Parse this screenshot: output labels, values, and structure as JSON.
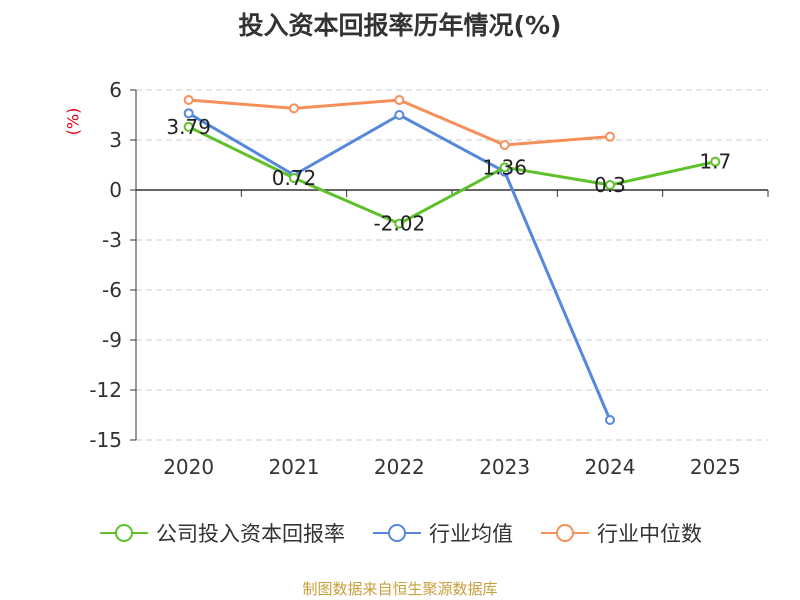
{
  "chart_data": {
    "type": "line",
    "title": "投入资本回报率历年情况(%)",
    "unit_label": "(%)",
    "categories": [
      "2020",
      "2021",
      "2022",
      "2023",
      "2024",
      "2025"
    ],
    "ylim": [
      -15,
      6
    ],
    "yticks": [
      6,
      3,
      0,
      -3,
      -6,
      -9,
      -12,
      -15
    ],
    "grid": true,
    "legend_position": "bottom",
    "series": [
      {
        "name": "公司投入资本回报率",
        "color": "#5ec12a",
        "values": [
          3.79,
          0.72,
          -2.02,
          1.36,
          0.3,
          1.7
        ],
        "labels": [
          "3.79",
          "0.72",
          "-2.02",
          "1.36",
          "0.3",
          "1.7"
        ]
      },
      {
        "name": "行业均值",
        "color": "#5588dd",
        "values": [
          4.6,
          0.9,
          4.5,
          1.1,
          -13.8,
          null
        ]
      },
      {
        "name": "行业中位数",
        "color": "#f5905a",
        "values": [
          5.4,
          4.9,
          5.4,
          2.7,
          3.2,
          null
        ]
      }
    ]
  },
  "source": "制图数据来自恒生聚源数据库"
}
